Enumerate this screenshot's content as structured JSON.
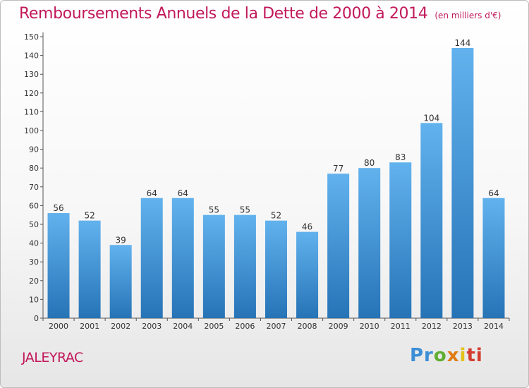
{
  "title": "Remboursements Annuels de la Dette de 2000 à 2014",
  "unit": "(en milliers d'€)",
  "commune": "JALEYRAC",
  "logo": {
    "letters": [
      "Pr",
      "o",
      "x",
      "i",
      "ti"
    ]
  },
  "colors": {
    "title": "#c2195b",
    "bar_top": "#62b2ee",
    "bar_bottom": "#2673b6"
  },
  "chart_data": {
    "type": "bar",
    "title": "Remboursements Annuels de la Dette de 2000 à 2014",
    "subtitle": "(en milliers d'€)",
    "categories": [
      "2000",
      "2001",
      "2002",
      "2003",
      "2004",
      "2005",
      "2006",
      "2007",
      "2008",
      "2009",
      "2010",
      "2011",
      "2012",
      "2013",
      "2014"
    ],
    "values": [
      56,
      52,
      39,
      64,
      64,
      55,
      55,
      52,
      46,
      77,
      80,
      83,
      104,
      144,
      64
    ],
    "ylim": [
      0,
      150
    ],
    "yticks": [
      0,
      10,
      20,
      30,
      40,
      50,
      60,
      70,
      80,
      90,
      100,
      110,
      120,
      130,
      140,
      150
    ],
    "grid": false,
    "legend": "none"
  }
}
